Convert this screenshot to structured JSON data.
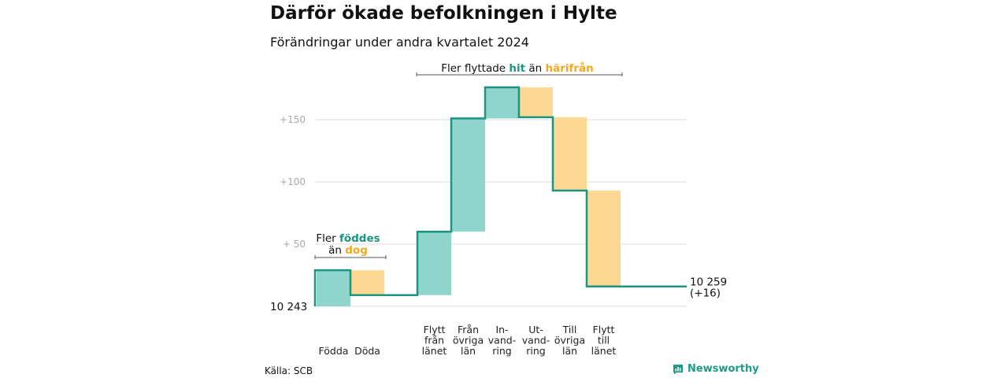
{
  "header": {
    "title": "Därför ökade befolkningen i Hylte",
    "subtitle": "Förändringar under andra kvartalet 2024"
  },
  "footer": {
    "source": "Källa: SCB",
    "brand": "Newsworthy"
  },
  "colors": {
    "increase": "#8fd5cc",
    "decrease": "#fdd892",
    "step_line": "#1b9582",
    "hit": "#1b9582",
    "harifran": "#f0a81f",
    "grid": "#dddddd"
  },
  "annotations": {
    "born": {
      "line1_prefix": "Fler ",
      "line1_hl": "föddes",
      "line2_prefix": "än ",
      "line2_hl": "dog"
    },
    "moved": {
      "prefix": "Fler flyttade ",
      "hl1": "hit",
      "mid": " än ",
      "hl2": "härifrån"
    }
  },
  "chart_data": {
    "type": "waterfall",
    "title": "Därför ökade befolkningen i Hylte",
    "subtitle": "Förändringar under andra kvartalet 2024",
    "start_value": 10243,
    "start_label": "10  243",
    "end_value": 10259,
    "end_label_line1": "10 259",
    "end_label_line2": "(+16)",
    "ylim": [
      0,
      178
    ],
    "y_ticks": [
      {
        "value": 50,
        "label": "+  50"
      },
      {
        "value": 100,
        "label": "+100"
      },
      {
        "value": 150,
        "label": "+150"
      }
    ],
    "grid": true,
    "steps": [
      {
        "label_lines": [
          "Födda"
        ],
        "change": 29,
        "cumulative": 29,
        "group": 0
      },
      {
        "label_lines": [
          "Döda"
        ],
        "change": -20,
        "cumulative": 9,
        "group": 0
      },
      {
        "label_lines": [
          "Flytt",
          "från",
          "länet"
        ],
        "change": 51,
        "cumulative": 60,
        "group": 1
      },
      {
        "label_lines": [
          "Från",
          "övriga",
          "län"
        ],
        "change": 91,
        "cumulative": 151,
        "group": 1
      },
      {
        "label_lines": [
          "In-",
          "vand-",
          "ring"
        ],
        "change": 25,
        "cumulative": 176,
        "group": 1
      },
      {
        "label_lines": [
          "Ut-",
          "vand-",
          "ring"
        ],
        "change": -24,
        "cumulative": 152,
        "group": 1
      },
      {
        "label_lines": [
          "Till",
          "övriga",
          "län"
        ],
        "change": -59,
        "cumulative": 93,
        "group": 1
      },
      {
        "label_lines": [
          "Flytt",
          "till",
          "länet"
        ],
        "change": -77,
        "cumulative": 16,
        "group": 1
      }
    ]
  }
}
